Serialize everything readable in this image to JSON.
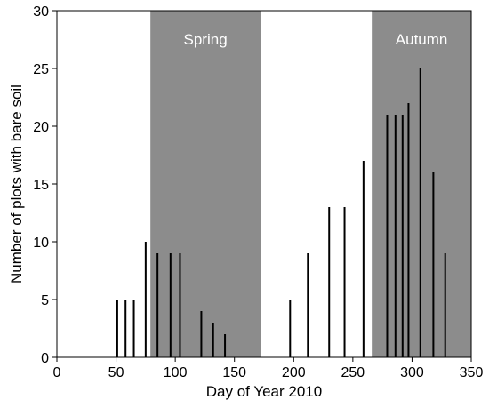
{
  "chart_data": {
    "type": "bar",
    "xlabel": "Day of Year 2010",
    "ylabel": "Number of plots with bare soil",
    "xlim": [
      0,
      350
    ],
    "ylim": [
      0,
      30
    ],
    "xticks": [
      0,
      50,
      100,
      150,
      200,
      250,
      300,
      350
    ],
    "yticks": [
      0,
      5,
      10,
      15,
      20,
      25,
      30
    ],
    "grid": false,
    "bar_color": "#000000",
    "shaded_regions": [
      {
        "label": "Spring",
        "start": 79,
        "end": 172,
        "color": "#8c8c8c"
      },
      {
        "label": "Autumn",
        "start": 266,
        "end": 350,
        "color": "#8c8c8c"
      }
    ],
    "x": [
      51,
      58,
      65,
      75,
      85,
      96,
      104,
      122,
      132,
      142,
      197,
      212,
      230,
      243,
      259,
      279,
      286,
      292,
      297,
      307,
      318,
      328
    ],
    "values": [
      5,
      5,
      5,
      10,
      9,
      9,
      9,
      4,
      3,
      2,
      5,
      9,
      13,
      13,
      17,
      21,
      21,
      21,
      22,
      25,
      16,
      9
    ]
  }
}
